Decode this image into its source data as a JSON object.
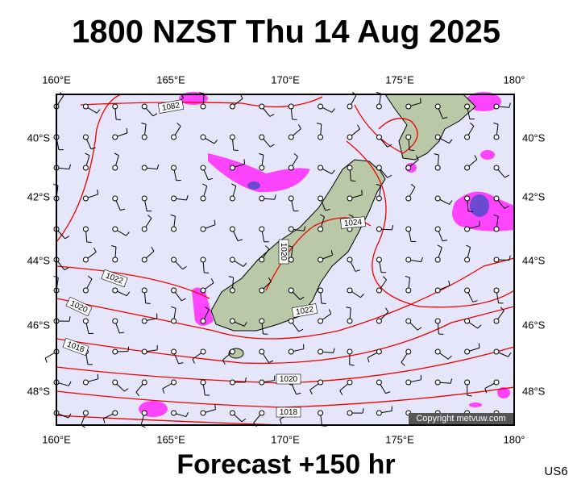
{
  "header": {
    "title": "1800 NZST Thu 14 Aug 2025"
  },
  "map": {
    "top_labels": [
      "160°E",
      "165°E",
      "170°E",
      "175°E",
      "180°"
    ],
    "bottom_labels": [
      "160°E",
      "165°E",
      "170°E",
      "175°E",
      "180°"
    ],
    "left_labels": [
      "40°S",
      "42°S",
      "44°S",
      "46°S",
      "48°S"
    ],
    "right_labels": [
      "40°S",
      "42°S",
      "44°S",
      "46°S",
      "48°S"
    ],
    "isobar_labels": [
      "1082",
      "1024",
      "1020",
      "1022",
      "1022",
      "1020",
      "1018",
      "1020",
      "1018"
    ],
    "copyright": "Copyright metvuw.com"
  },
  "footer": {
    "caption": "Forecast +150 hr",
    "code": "US6"
  }
}
